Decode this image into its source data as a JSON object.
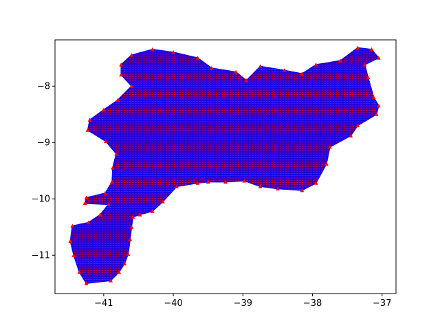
{
  "chart_data": {
    "type": "scatter",
    "title": "",
    "xlabel": "",
    "ylabel": "",
    "xlim": [
      -41.7,
      -36.8
    ],
    "ylim": [
      -11.68,
      -7.18
    ],
    "xticks": [
      -41,
      -40,
      -39,
      -38,
      -37
    ],
    "yticks": [
      -11,
      -10,
      -9,
      -8
    ],
    "xtick_labels": [
      "−41",
      "−40",
      "−39",
      "−38",
      "−37"
    ],
    "ytick_labels": [
      "−11",
      "−10",
      "−9",
      "−8"
    ],
    "grid": false,
    "legend": "none",
    "region_outline": [
      [
        -41.45,
        -10.48
      ],
      [
        -41.22,
        -10.42
      ],
      [
        -41.05,
        -10.28
      ],
      [
        -40.93,
        -10.1
      ],
      [
        -41.27,
        -10.08
      ],
      [
        -41.25,
        -9.98
      ],
      [
        -40.98,
        -9.9
      ],
      [
        -40.88,
        -9.7
      ],
      [
        -40.87,
        -9.45
      ],
      [
        -40.82,
        -9.2
      ],
      [
        -40.97,
        -8.98
      ],
      [
        -41.23,
        -8.78
      ],
      [
        -41.2,
        -8.6
      ],
      [
        -41.0,
        -8.42
      ],
      [
        -40.8,
        -8.25
      ],
      [
        -40.6,
        -8.0
      ],
      [
        -40.75,
        -7.8
      ],
      [
        -40.75,
        -7.62
      ],
      [
        -40.6,
        -7.45
      ],
      [
        -40.3,
        -7.35
      ],
      [
        -40.0,
        -7.4
      ],
      [
        -39.65,
        -7.5
      ],
      [
        -39.45,
        -7.68
      ],
      [
        -39.1,
        -7.75
      ],
      [
        -38.95,
        -7.9
      ],
      [
        -38.75,
        -7.65
      ],
      [
        -38.4,
        -7.72
      ],
      [
        -38.15,
        -7.78
      ],
      [
        -37.95,
        -7.62
      ],
      [
        -37.6,
        -7.55
      ],
      [
        -37.35,
        -7.32
      ],
      [
        -37.15,
        -7.35
      ],
      [
        -37.05,
        -7.5
      ],
      [
        -37.25,
        -7.62
      ],
      [
        -37.2,
        -7.85
      ],
      [
        -37.12,
        -8.2
      ],
      [
        -37.05,
        -8.35
      ],
      [
        -37.08,
        -8.5
      ],
      [
        -37.35,
        -8.7
      ],
      [
        -37.45,
        -8.88
      ],
      [
        -37.75,
        -9.08
      ],
      [
        -37.8,
        -9.38
      ],
      [
        -37.95,
        -9.72
      ],
      [
        -38.15,
        -9.85
      ],
      [
        -38.5,
        -9.82
      ],
      [
        -38.75,
        -9.78
      ],
      [
        -38.98,
        -9.68
      ],
      [
        -39.25,
        -9.7
      ],
      [
        -39.5,
        -9.7
      ],
      [
        -39.65,
        -9.72
      ],
      [
        -39.95,
        -9.78
      ],
      [
        -40.15,
        -10.05
      ],
      [
        -40.3,
        -10.22
      ],
      [
        -40.48,
        -10.28
      ],
      [
        -40.58,
        -10.32
      ],
      [
        -40.6,
        -10.5
      ],
      [
        -40.62,
        -10.72
      ],
      [
        -40.65,
        -10.98
      ],
      [
        -40.7,
        -11.15
      ],
      [
        -40.78,
        -11.3
      ],
      [
        -40.9,
        -11.45
      ],
      [
        -41.25,
        -11.5
      ],
      [
        -41.35,
        -11.3
      ],
      [
        -41.43,
        -11.0
      ],
      [
        -41.48,
        -10.75
      ],
      [
        -41.45,
        -10.48
      ]
    ],
    "grid_spacing": 0.04,
    "colors": {
      "outline": "#0000ff",
      "fill": "#2200dd",
      "points": "#ff0000",
      "axes": "#000000",
      "background": "#ffffff"
    }
  }
}
